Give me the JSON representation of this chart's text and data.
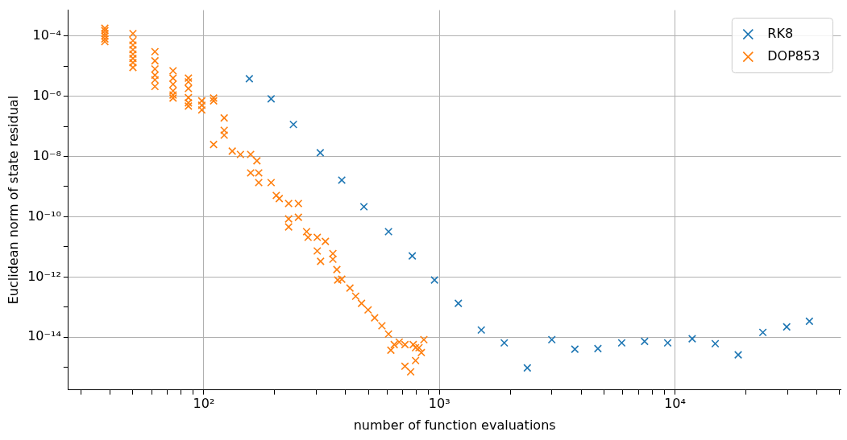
{
  "chart_data": {
    "type": "scatter",
    "xlabel": "number of function evaluations",
    "ylabel": "Euclidean norm of state residual",
    "log": "xy",
    "grid": true,
    "legend": "top right",
    "marker": "cross",
    "xlim": [
      26.6,
      50600
    ],
    "xticks": [
      {
        "value": 30,
        "label": null
      },
      {
        "value": 40,
        "label": null
      },
      {
        "value": 50,
        "label": null
      },
      {
        "value": 60,
        "label": null
      },
      {
        "value": 70,
        "label": null
      },
      {
        "value": 80,
        "label": null
      },
      {
        "value": 90,
        "label": null
      },
      {
        "value": 100,
        "label": "10²"
      },
      {
        "value": 200,
        "label": null
      },
      {
        "value": 300,
        "label": null
      },
      {
        "value": 400,
        "label": null
      },
      {
        "value": 500,
        "label": null
      },
      {
        "value": 600,
        "label": null
      },
      {
        "value": 700,
        "label": null
      },
      {
        "value": 800,
        "label": null
      },
      {
        "value": 900,
        "label": null
      },
      {
        "value": 1000,
        "label": "10³"
      },
      {
        "value": 2000,
        "label": null
      },
      {
        "value": 3000,
        "label": null
      },
      {
        "value": 4000,
        "label": null
      },
      {
        "value": 5000,
        "label": null
      },
      {
        "value": 6000,
        "label": null
      },
      {
        "value": 7000,
        "label": null
      },
      {
        "value": 8000,
        "label": null
      },
      {
        "value": 9000,
        "label": null
      },
      {
        "value": 10000,
        "label": "10⁴"
      },
      {
        "value": 20000,
        "label": null
      },
      {
        "value": 30000,
        "label": null
      },
      {
        "value": 40000,
        "label": null
      },
      {
        "value": 50000,
        "label": null
      }
    ],
    "ylim": [
      1.8e-16,
      0.00072
    ],
    "yticks": [
      {
        "value": 1e-15,
        "label": null
      },
      {
        "value": 1e-14,
        "label": "10⁻¹⁴"
      },
      {
        "value": 1e-13,
        "label": null
      },
      {
        "value": 1e-12,
        "label": "10⁻¹²"
      },
      {
        "value": 1e-11,
        "label": null
      },
      {
        "value": 1e-10,
        "label": "10⁻¹⁰"
      },
      {
        "value": 1e-09,
        "label": null
      },
      {
        "value": 1e-08,
        "label": "10⁻⁸"
      },
      {
        "value": 1e-07,
        "label": null
      },
      {
        "value": 1e-06,
        "label": "10⁻⁶"
      },
      {
        "value": 1e-05,
        "label": null
      },
      {
        "value": 0.0001,
        "label": "10⁻⁴"
      }
    ],
    "series": [
      {
        "name": "RK8",
        "color": "#1f77b4",
        "x": [
          156,
          193,
          240,
          312,
          385,
          478,
          608,
          767,
          953,
          1203,
          1506,
          1885,
          2361,
          3000,
          3758,
          4707,
          5940,
          7430,
          9310,
          11830,
          14820,
          18550,
          23600,
          29800,
          37200
        ],
        "values": [
          3.8e-06,
          8.2e-07,
          1.15e-07,
          1.33e-08,
          1.64e-09,
          2.15e-10,
          3.2e-11,
          5e-12,
          7.9e-13,
          1.33e-13,
          1.74e-14,
          6.5e-15,
          9.6e-16,
          8.3e-15,
          4e-15,
          4.2e-15,
          6.5e-15,
          7.3e-15,
          6.5e-15,
          8.9e-15,
          6.1e-15,
          2.6e-15,
          1.45e-14,
          2.2e-14,
          3.4e-14
        ]
      },
      {
        "name": "DOP853",
        "color": "#ff7f0e",
        "x": [
          38,
          38,
          38,
          38,
          38,
          38,
          50,
          50,
          50,
          50,
          50,
          50,
          50,
          50,
          62,
          62,
          62,
          62,
          62,
          62,
          74,
          74,
          74,
          74,
          74,
          74,
          86,
          86,
          86,
          86,
          86,
          86,
          98,
          98,
          98,
          110,
          110,
          110,
          122,
          122,
          122,
          132,
          143,
          158,
          168,
          171,
          158,
          171,
          193,
          203,
          209,
          229,
          229,
          252,
          229,
          252,
          277,
          273,
          303,
          313,
          303,
          328,
          353,
          353,
          367,
          385,
          370,
          417,
          441,
          467,
          498,
          531,
          570,
          608,
          643,
          622,
          675,
          714,
          774,
          838,
          792,
          755,
          714,
          792,
          859,
          819
        ],
        "values": [
          0.00018,
          0.00015,
          0.00012,
          0.0001,
          8e-05,
          6.5e-05,
          0.00012,
          7e-05,
          5e-05,
          3.5e-05,
          2.5e-05,
          1.8e-05,
          1.3e-05,
          9e-06,
          3e-05,
          1.5e-05,
          8e-06,
          5e-06,
          3.5e-06,
          2.1e-06,
          7e-06,
          4e-06,
          2.5e-06,
          1.5e-06,
          1.1e-06,
          8.7e-07,
          4e-06,
          3e-06,
          1.8e-06,
          9e-07,
          6e-07,
          4.7e-07,
          7e-07,
          5e-07,
          3.5e-07,
          8.7e-07,
          7e-07,
          2.5e-08,
          1.9e-07,
          7.4e-08,
          5.1e-08,
          1.5e-08,
          1.17e-08,
          1.17e-08,
          7.2e-09,
          1.36e-09,
          2.85e-09,
          2.85e-09,
          1.36e-09,
          5.1e-10,
          4e-10,
          2.75e-10,
          8.5e-11,
          2.75e-10,
          4.6e-11,
          9.6e-11,
          2.07e-11,
          3.2e-11,
          7.3e-12,
          3.3e-12,
          2.07e-11,
          1.52e-11,
          3.9e-12,
          6e-12,
          1.76e-12,
          8.4e-13,
          7.9e-13,
          4.3e-13,
          2.3e-13,
          1.33e-13,
          8.1e-14,
          4.4e-14,
          2.4e-14,
          1.28e-14,
          5.7e-15,
          3.7e-15,
          6.9e-15,
          5.7e-15,
          5.7e-15,
          3.1e-15,
          1.68e-15,
          7.1e-16,
          1.09e-15,
          4.5e-15,
          8.3e-15,
          4.5e-15
        ]
      }
    ]
  }
}
